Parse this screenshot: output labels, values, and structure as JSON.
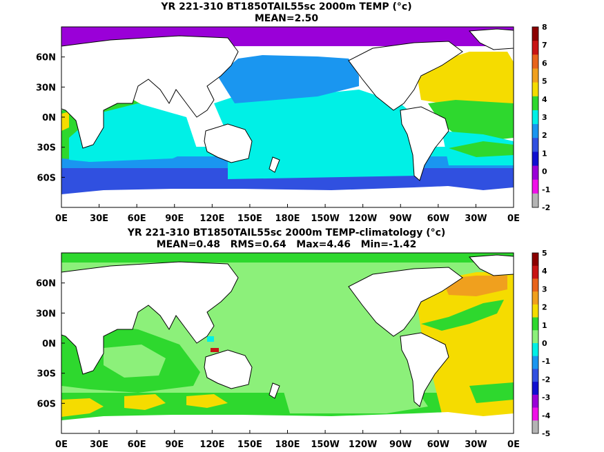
{
  "panels": [
    {
      "title": "YR 221-310 BT1850TAIL55sc 2000m TEMP (°c)",
      "subtitle": "MEAN=2.50",
      "lon_ticks": [
        "0E",
        "30E",
        "60E",
        "90E",
        "120E",
        "150E",
        "180E",
        "150W",
        "120W",
        "90W",
        "60W",
        "30W",
        "0E"
      ],
      "lat_ticks": [
        "60N",
        "30N",
        "0N",
        "30S",
        "60S"
      ],
      "colorbar": {
        "labels": [
          "8",
          "7",
          "6",
          "5",
          "4",
          "3",
          "2",
          "1",
          "0",
          "-1",
          "-2"
        ],
        "colors": [
          "#8b0000",
          "#c81414",
          "#e8641c",
          "#f0a01e",
          "#f5dc00",
          "#2ed82e",
          "#00f0e6",
          "#1a96f0",
          "#3050e0",
          "#1010d0",
          "#9a00d8",
          "#f010e8",
          "#b4b4b4"
        ]
      }
    },
    {
      "title": "YR 221-310 BT1850TAIL55sc 2000m TEMP-climatology (°c)",
      "subtitle": "MEAN=0.48   RMS=0.64   Max=4.46   Min=-1.42",
      "lon_ticks": [
        "0E",
        "30E",
        "60E",
        "90E",
        "120E",
        "150E",
        "180E",
        "150W",
        "120W",
        "90W",
        "60W",
        "30W",
        "0E"
      ],
      "lat_ticks": [
        "60N",
        "30N",
        "0N",
        "30S",
        "60S"
      ],
      "colorbar": {
        "labels": [
          "5",
          "4",
          "3",
          "2",
          "1",
          "0",
          "-1",
          "-2",
          "-3",
          "-4",
          "-5"
        ],
        "colors": [
          "#8b0000",
          "#c81414",
          "#e8641c",
          "#f0a01e",
          "#f5dc00",
          "#2ed82e",
          "#8cf07a",
          "#00f0e6",
          "#1a96f0",
          "#3050e0",
          "#1010d0",
          "#9a00d8",
          "#f010e8",
          "#b4b4b4"
        ]
      }
    }
  ]
}
